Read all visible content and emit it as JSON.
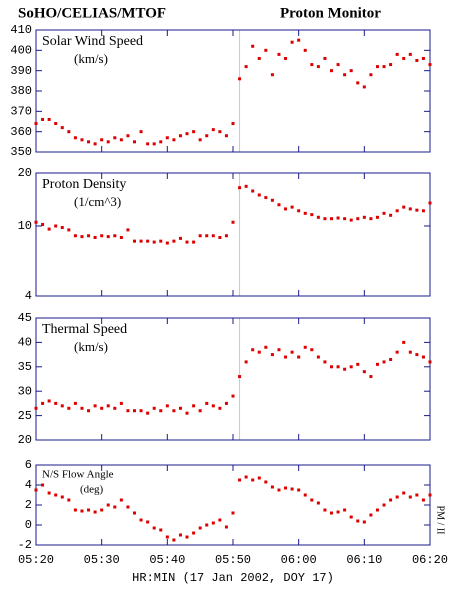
{
  "header": {
    "left": "SoHO/CELIAS/MTOF",
    "right": "Proton Monitor"
  },
  "chart_data": [
    {
      "type": "scatter",
      "label": "Solar Wind Speed",
      "unit": "(km/s)",
      "color": "#dd0000",
      "vline_x": 351,
      "x": [
        320,
        321,
        322,
        323,
        324,
        325,
        326,
        327,
        328,
        329,
        330,
        331,
        332,
        333,
        334,
        335,
        336,
        337,
        338,
        339,
        340,
        341,
        342,
        343,
        344,
        345,
        346,
        347,
        348,
        349,
        350,
        351,
        352,
        353,
        354,
        355,
        356,
        357,
        358,
        359,
        360,
        361,
        362,
        363,
        364,
        365,
        366,
        367,
        368,
        369,
        370,
        371,
        372,
        373,
        374,
        375,
        376,
        377,
        378,
        379,
        380
      ],
      "values": [
        364,
        366,
        366,
        364,
        362,
        360,
        357,
        356,
        355,
        354,
        356,
        355,
        357,
        356,
        358,
        355,
        360,
        354,
        354,
        355,
        357,
        356,
        358,
        359,
        360,
        356,
        358,
        361,
        360,
        358,
        364,
        386,
        392,
        402,
        396,
        400,
        388,
        398,
        396,
        404,
        405,
        400,
        393,
        392,
        396,
        390,
        393,
        388,
        390,
        384,
        382,
        388,
        392,
        392,
        393,
        398,
        396,
        398,
        395,
        396,
        393
      ],
      "xlim": [
        320,
        380
      ],
      "xticks": [
        320,
        330,
        340,
        350,
        360,
        370,
        380
      ],
      "ylim": [
        350,
        410
      ],
      "yticks": [
        350,
        360,
        370,
        380,
        390,
        400,
        410
      ]
    },
    {
      "type": "scatter",
      "label": "Proton Density",
      "unit": "(1/cm^3)",
      "color": "#dd0000",
      "vline_x": 351,
      "log": true,
      "x": [
        320,
        321,
        322,
        323,
        324,
        325,
        326,
        327,
        328,
        329,
        330,
        331,
        332,
        333,
        334,
        335,
        336,
        337,
        338,
        339,
        340,
        341,
        342,
        343,
        344,
        345,
        346,
        347,
        348,
        349,
        350,
        351,
        352,
        353,
        354,
        355,
        356,
        357,
        358,
        359,
        360,
        361,
        362,
        363,
        364,
        365,
        366,
        367,
        368,
        369,
        370,
        371,
        372,
        373,
        374,
        375,
        376,
        377,
        378,
        379,
        380
      ],
      "values": [
        10.5,
        10.2,
        9.6,
        10.0,
        9.8,
        9.5,
        8.8,
        8.7,
        8.8,
        8.6,
        8.8,
        8.7,
        8.8,
        8.6,
        9.5,
        8.2,
        8.2,
        8.2,
        8.1,
        8.2,
        8.0,
        8.2,
        8.5,
        8.1,
        8.1,
        8.8,
        8.8,
        8.8,
        8.6,
        8.8,
        10.5,
        16.5,
        16.8,
        15.8,
        15.0,
        14.5,
        14.0,
        13.2,
        12.5,
        12.8,
        12.2,
        11.8,
        11.6,
        11.2,
        11.0,
        11.0,
        11.1,
        11.0,
        10.8,
        11.0,
        11.2,
        11.0,
        11.2,
        11.8,
        11.5,
        12.2,
        12.8,
        12.5,
        12.3,
        12.2,
        13.5
      ],
      "xlim": [
        320,
        380
      ],
      "xticks": [
        320,
        330,
        340,
        350,
        360,
        370,
        380
      ],
      "ylim": [
        4,
        20
      ],
      "yticks": [
        4,
        10,
        20
      ]
    },
    {
      "type": "scatter",
      "label": "Thermal Speed",
      "unit": "(km/s)",
      "color": "#dd0000",
      "vline_x": 351,
      "x": [
        320,
        321,
        322,
        323,
        324,
        325,
        326,
        327,
        328,
        329,
        330,
        331,
        332,
        333,
        334,
        335,
        336,
        337,
        338,
        339,
        340,
        341,
        342,
        343,
        344,
        345,
        346,
        347,
        348,
        349,
        350,
        351,
        352,
        353,
        354,
        355,
        356,
        357,
        358,
        359,
        360,
        361,
        362,
        363,
        364,
        365,
        366,
        367,
        368,
        369,
        370,
        371,
        372,
        373,
        374,
        375,
        376,
        377,
        378,
        379,
        380
      ],
      "values": [
        26.5,
        27.5,
        28,
        27.5,
        27,
        26.5,
        27.5,
        26.5,
        26,
        27,
        26.5,
        27,
        26.5,
        27.5,
        26,
        26,
        26,
        25.5,
        26.5,
        26,
        27,
        26,
        26.5,
        25.5,
        27,
        26,
        27.5,
        27,
        26.5,
        27.5,
        29,
        33,
        36,
        38.5,
        38,
        39,
        37.5,
        38.5,
        37,
        38,
        37,
        39,
        38.5,
        37,
        36,
        35,
        35,
        34.5,
        35,
        35.5,
        34,
        33,
        35.5,
        36,
        36.5,
        38,
        40,
        38,
        37.5,
        37,
        36
      ],
      "xlim": [
        320,
        380
      ],
      "xticks": [
        320,
        330,
        340,
        350,
        360,
        370,
        380
      ],
      "ylim": [
        20,
        45
      ],
      "yticks": [
        20,
        25,
        30,
        35,
        40,
        45
      ]
    },
    {
      "type": "scatter",
      "label": "N/S Flow Angle",
      "unit": "(deg)",
      "color": "#dd0000",
      "side_label": "PM / II",
      "x": [
        320,
        321,
        322,
        323,
        324,
        325,
        326,
        327,
        328,
        329,
        330,
        331,
        332,
        333,
        334,
        335,
        336,
        337,
        338,
        339,
        340,
        341,
        342,
        343,
        344,
        345,
        346,
        347,
        348,
        349,
        350,
        351,
        352,
        353,
        354,
        355,
        356,
        357,
        358,
        359,
        360,
        361,
        362,
        363,
        364,
        365,
        366,
        367,
        368,
        369,
        370,
        371,
        372,
        373,
        374,
        375,
        376,
        377,
        378,
        379,
        380
      ],
      "values": [
        3.5,
        4.0,
        3.2,
        3.0,
        2.8,
        2.5,
        1.5,
        1.4,
        1.5,
        1.3,
        1.5,
        2.0,
        1.8,
        2.5,
        1.8,
        1.2,
        0.5,
        0.3,
        -0.3,
        -0.5,
        -1.2,
        -1.5,
        -1.0,
        -1.2,
        -0.8,
        -0.3,
        0.0,
        0.2,
        0.5,
        -0.2,
        1.2,
        4.5,
        4.8,
        4.5,
        4.7,
        4.3,
        3.8,
        3.5,
        3.7,
        3.6,
        3.5,
        3.0,
        2.5,
        2.2,
        1.5,
        1.2,
        1.3,
        1.5,
        0.8,
        0.4,
        0.3,
        1.0,
        1.5,
        2.0,
        2.5,
        2.8,
        3.2,
        2.8,
        3.0,
        2.5,
        3.0
      ],
      "xlim": [
        320,
        380
      ],
      "xticks": [
        {
          "value": 320,
          "label": "05:20"
        },
        {
          "value": 330,
          "label": "05:30"
        },
        {
          "value": 340,
          "label": "05:40"
        },
        {
          "value": 350,
          "label": "05:50"
        },
        {
          "value": 360,
          "label": "06:00"
        },
        {
          "value": 370,
          "label": "06:10"
        },
        {
          "value": 380,
          "label": "06:20"
        }
      ],
      "xlabel": "HR:MIN (17 Jan 2002, DOY 17)",
      "ylim": [
        -2,
        6
      ],
      "yticks": [
        -2,
        0,
        2,
        4,
        6
      ]
    }
  ]
}
